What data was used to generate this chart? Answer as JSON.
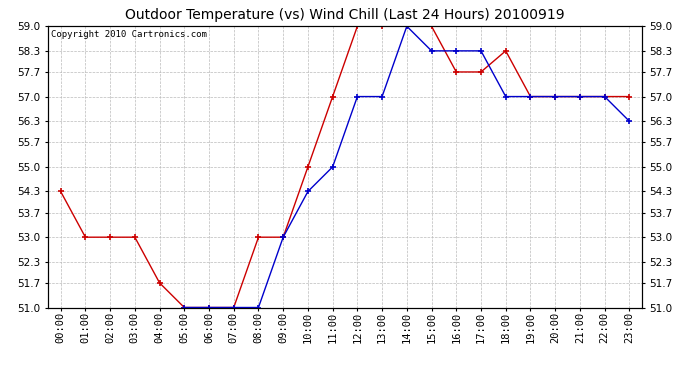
{
  "title": "Outdoor Temperature (vs) Wind Chill (Last 24 Hours) 20100919",
  "copyright": "Copyright 2010 Cartronics.com",
  "hours": [
    "00:00",
    "01:00",
    "02:00",
    "03:00",
    "04:00",
    "05:00",
    "06:00",
    "07:00",
    "08:00",
    "09:00",
    "10:00",
    "11:00",
    "12:00",
    "13:00",
    "14:00",
    "15:00",
    "16:00",
    "17:00",
    "18:00",
    "19:00",
    "20:00",
    "21:00",
    "22:00",
    "23:00"
  ],
  "temp_red": [
    54.3,
    53.0,
    53.0,
    53.0,
    51.7,
    51.0,
    51.0,
    51.0,
    53.0,
    53.0,
    55.0,
    57.0,
    59.0,
    59.0,
    59.0,
    59.0,
    57.7,
    57.7,
    58.3,
    57.0,
    57.0,
    57.0,
    57.0,
    57.0
  ],
  "temp_blue": [
    null,
    null,
    null,
    null,
    null,
    51.0,
    51.0,
    51.0,
    51.0,
    53.0,
    54.3,
    55.0,
    57.0,
    57.0,
    59.0,
    58.3,
    58.3,
    58.3,
    57.0,
    57.0,
    57.0,
    57.0,
    57.0,
    56.3
  ],
  "ylim_min": 51.0,
  "ylim_max": 59.0,
  "ytick_step": 0.7,
  "yticks": [
    51.0,
    51.7,
    52.3,
    53.0,
    53.7,
    54.3,
    55.0,
    55.7,
    56.3,
    57.0,
    57.7,
    58.3,
    59.0
  ],
  "red_color": "#cc0000",
  "blue_color": "#0000cc",
  "bg_color": "#ffffff",
  "grid_color": "#bbbbbb",
  "title_fontsize": 10,
  "tick_fontsize": 7.5,
  "copyright_fontsize": 6.5
}
